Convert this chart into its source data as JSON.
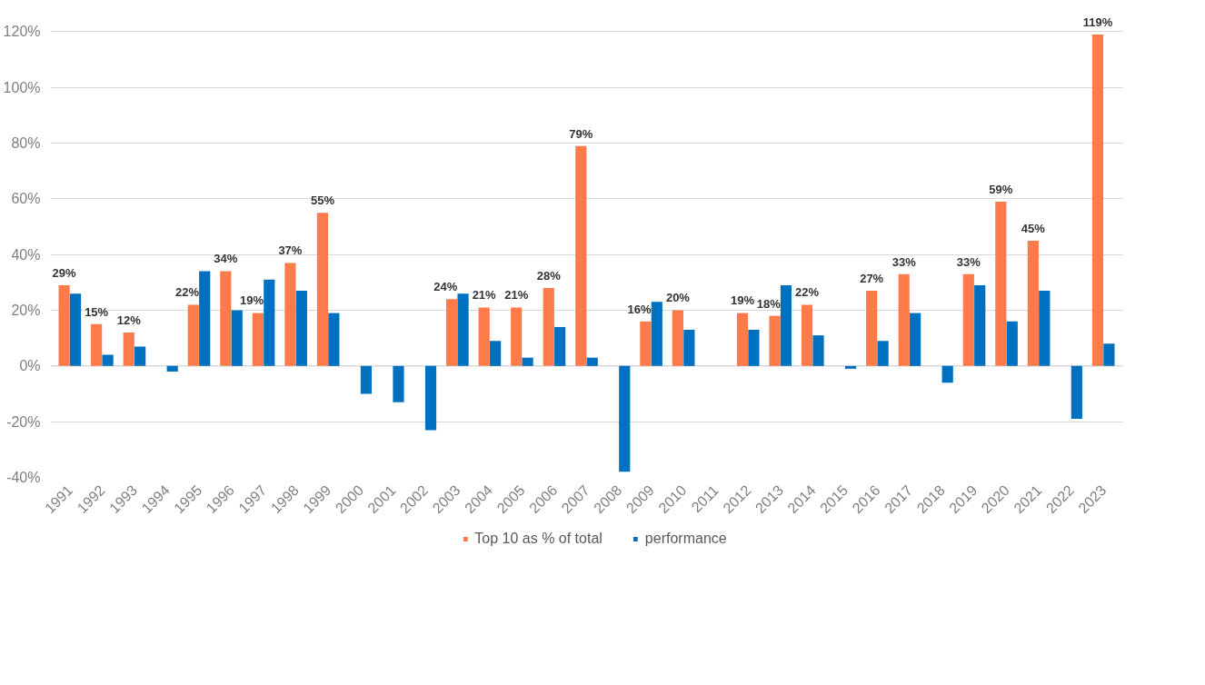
{
  "chart_data": {
    "type": "bar",
    "categories": [
      "1991",
      "1992",
      "1993",
      "1994",
      "1995",
      "1996",
      "1997",
      "1998",
      "1999",
      "2000",
      "2001",
      "2002",
      "2003",
      "2004",
      "2005",
      "2006",
      "2007",
      "2008",
      "2009",
      "2010",
      "2011",
      "2012",
      "2013",
      "2014",
      "2015",
      "2016",
      "2017",
      "2018",
      "2019",
      "2020",
      "2021",
      "2022",
      "2023"
    ],
    "series": [
      {
        "name": "Top 10 as % of total",
        "color": "#fd7b4b",
        "values": [
          29,
          15,
          12,
          null,
          22,
          34,
          19,
          37,
          55,
          null,
          null,
          null,
          24,
          21,
          21,
          28,
          79,
          null,
          16,
          20,
          null,
          19,
          18,
          22,
          null,
          27,
          33,
          null,
          33,
          59,
          45,
          null,
          119
        ],
        "value_labels": [
          "29%",
          "15%",
          "12%",
          null,
          "22%",
          "34%",
          "19%",
          "37%",
          "55%",
          null,
          null,
          null,
          "24%",
          "21%",
          "21%",
          "28%",
          "79%",
          null,
          "16%",
          "20%",
          null,
          "19%",
          "18%",
          "22%",
          null,
          "27%",
          "33%",
          null,
          "33%",
          "59%",
          "45%",
          null,
          "119%"
        ]
      },
      {
        "name": "performance",
        "color": "#0070c0",
        "values": [
          26,
          4,
          7,
          -2,
          34,
          20,
          31,
          27,
          19,
          -10,
          -13,
          -23,
          26,
          9,
          3,
          14,
          3,
          -38,
          23,
          13,
          null,
          13,
          29,
          11,
          -1,
          9,
          19,
          -6,
          29,
          16,
          27,
          -19,
          8
        ]
      }
    ],
    "ylim": [
      -40,
      120
    ],
    "yticks": [
      {
        "value": -40,
        "label": "-40%"
      },
      {
        "value": -20,
        "label": "-20%"
      },
      {
        "value": 0,
        "label": "0%"
      },
      {
        "value": 20,
        "label": "20%"
      },
      {
        "value": 40,
        "label": "40%"
      },
      {
        "value": 60,
        "label": "60%"
      },
      {
        "value": 80,
        "label": "80%"
      },
      {
        "value": 100,
        "label": "100%"
      },
      {
        "value": 120,
        "label": "120%"
      }
    ],
    "grid": "y",
    "legend": "bottom"
  }
}
